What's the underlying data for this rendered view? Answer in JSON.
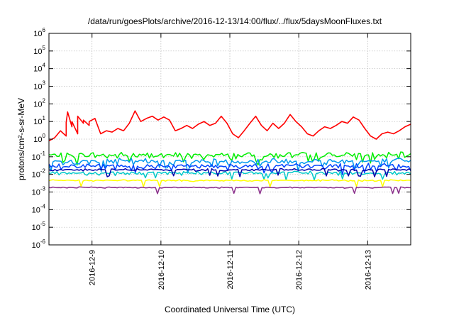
{
  "chart_data": {
    "type": "line",
    "title": "/data/run/goesPlots/archive/2016-12-13/14:00/flux/../flux/5daysMoonFluxes.txt",
    "xlabel": "Coordinated Universal Time (UTC)",
    "ylabel": "protons/cm²-s-sr-MeV",
    "y_scale": "log",
    "ylim": [
      1e-06,
      1000000.0
    ],
    "y_ticks": [
      {
        "label": "10",
        "exp": "-6",
        "value": 1e-06
      },
      {
        "label": "10",
        "exp": "-5",
        "value": 1e-05
      },
      {
        "label": "10",
        "exp": "-4",
        "value": 0.0001
      },
      {
        "label": "10",
        "exp": "-3",
        "value": 0.001
      },
      {
        "label": "10",
        "exp": "-2",
        "value": 0.01
      },
      {
        "label": "10",
        "exp": "-1",
        "value": 0.1
      },
      {
        "label": "10",
        "exp": "0",
        "value": 1
      },
      {
        "label": "10",
        "exp": "1",
        "value": 10
      },
      {
        "label": "10",
        "exp": "2",
        "value": 100
      },
      {
        "label": "10",
        "exp": "3",
        "value": 1000
      },
      {
        "label": "10",
        "exp": "4",
        "value": 10000
      },
      {
        "label": "10",
        "exp": "5",
        "value": 100000
      },
      {
        "label": "10",
        "exp": "6",
        "value": 1000000
      }
    ],
    "xlim": [
      "2016-12-08 09:00",
      "2016-12-13 15:00"
    ],
    "x_ticks": [
      "2016-12-9",
      "2016-12-10",
      "2016-12-11",
      "2016-12-12",
      "2016-12-13"
    ],
    "x_tick_times": [
      "2016-12-09 00:00",
      "2016-12-10 00:00",
      "2016-12-11 00:00",
      "2016-12-12 00:00",
      "2016-12-13 00:00"
    ],
    "grid": true,
    "series": [
      {
        "color": "#ff0000",
        "values": [
          {
            "t": "2016-12-08 09:00",
            "v": 0.8
          },
          {
            "t": "2016-12-08 11:00",
            "v": 1.2
          },
          {
            "t": "2016-12-08 13:00",
            "v": 3
          },
          {
            "t": "2016-12-08 15:00",
            "v": 1.5
          },
          {
            "t": "2016-12-08 17:00",
            "v": 5
          },
          {
            "t": "2016-12-08 19:00",
            "v": 2
          },
          {
            "t": "2016-12-08 21:00",
            "v": 8
          },
          {
            "t": "2016-12-08 23:00",
            "v": 6
          },
          {
            "t": "2016-12-09 01:00",
            "v": 15
          },
          {
            "t": "2016-12-08 13:30",
            "v": 2.5
          },
          {
            "t": "2016-12-08 15:00",
            "v": 9
          },
          {
            "t": "2016-12-08 15:30",
            "v": 35
          },
          {
            "t": "2016-12-08 17:00",
            "v": 10
          },
          {
            "t": "2016-12-08 19:00",
            "v": 20
          },
          {
            "t": "2016-12-08 21:00",
            "v": 12
          },
          {
            "t": "2016-12-08 23:00",
            "v": 10
          },
          {
            "t": "2016-12-09 01:00",
            "v": 15
          },
          {
            "t": "2016-12-09 03:00",
            "v": 2
          },
          {
            "t": "2016-12-09 05:00",
            "v": 3
          },
          {
            "t": "2016-12-09 07:00",
            "v": 2.5
          },
          {
            "t": "2016-12-09 09:00",
            "v": 4
          },
          {
            "t": "2016-12-09 11:00",
            "v": 3
          },
          {
            "t": "2016-12-09 13:00",
            "v": 8
          },
          {
            "t": "2016-12-09 15:00",
            "v": 40
          },
          {
            "t": "2016-12-09 17:00",
            "v": 10
          },
          {
            "t": "2016-12-09 19:00",
            "v": 15
          },
          {
            "t": "2016-12-09 21:00",
            "v": 20
          },
          {
            "t": "2016-12-09 23:00",
            "v": 12
          },
          {
            "t": "2016-12-10 01:00",
            "v": 18
          },
          {
            "t": "2016-12-10 03:00",
            "v": 12
          },
          {
            "t": "2016-12-10 05:00",
            "v": 3
          },
          {
            "t": "2016-12-10 07:00",
            "v": 4
          },
          {
            "t": "2016-12-10 09:00",
            "v": 6
          },
          {
            "t": "2016-12-10 11:00",
            "v": 4
          },
          {
            "t": "2016-12-10 13:00",
            "v": 7
          },
          {
            "t": "2016-12-10 15:00",
            "v": 10
          },
          {
            "t": "2016-12-10 17:00",
            "v": 6
          },
          {
            "t": "2016-12-10 19:00",
            "v": 8
          },
          {
            "t": "2016-12-10 21:00",
            "v": 20
          },
          {
            "t": "2016-12-10 23:00",
            "v": 8
          },
          {
            "t": "2016-12-11 01:00",
            "v": 2
          },
          {
            "t": "2016-12-11 03:00",
            "v": 1.2
          },
          {
            "t": "2016-12-11 05:00",
            "v": 3
          },
          {
            "t": "2016-12-11 07:00",
            "v": 8
          },
          {
            "t": "2016-12-11 09:00",
            "v": 20
          },
          {
            "t": "2016-12-11 11:00",
            "v": 6
          },
          {
            "t": "2016-12-11 13:00",
            "v": 3
          },
          {
            "t": "2016-12-11 15:00",
            "v": 8
          },
          {
            "t": "2016-12-11 17:00",
            "v": 4
          },
          {
            "t": "2016-12-11 19:00",
            "v": 8
          },
          {
            "t": "2016-12-11 21:00",
            "v": 25
          },
          {
            "t": "2016-12-11 23:00",
            "v": 10
          },
          {
            "t": "2016-12-12 01:00",
            "v": 5
          },
          {
            "t": "2016-12-12 03:00",
            "v": 2
          },
          {
            "t": "2016-12-12 05:00",
            "v": 1.5
          },
          {
            "t": "2016-12-12 07:00",
            "v": 3
          },
          {
            "t": "2016-12-12 09:00",
            "v": 5
          },
          {
            "t": "2016-12-12 11:00",
            "v": 4
          },
          {
            "t": "2016-12-12 13:00",
            "v": 6
          },
          {
            "t": "2016-12-12 15:00",
            "v": 10
          },
          {
            "t": "2016-12-12 17:00",
            "v": 8
          },
          {
            "t": "2016-12-12 19:00",
            "v": 18
          },
          {
            "t": "2016-12-12 21:00",
            "v": 12
          },
          {
            "t": "2016-12-12 23:00",
            "v": 4
          },
          {
            "t": "2016-12-13 01:00",
            "v": 1.5
          },
          {
            "t": "2016-12-13 03:00",
            "v": 1
          },
          {
            "t": "2016-12-13 05:00",
            "v": 2
          },
          {
            "t": "2016-12-13 07:00",
            "v": 2.5
          },
          {
            "t": "2016-12-13 09:00",
            "v": 2
          },
          {
            "t": "2016-12-13 11:00",
            "v": 3
          },
          {
            "t": "2016-12-13 13:00",
            "v": 5
          },
          {
            "t": "2016-12-13 15:00",
            "v": 7
          }
        ]
      },
      {
        "color": "#00ee00",
        "base": 0.12,
        "spread": 0.35
      },
      {
        "color": "#0099ee",
        "base": 0.055,
        "spread": 0.35
      },
      {
        "color": "#0044ff",
        "base": 0.03,
        "spread": 0.3
      },
      {
        "color": "#00c8c8",
        "base": 0.012,
        "spread": 0.2
      },
      {
        "color": "#0000aa",
        "base": 0.018,
        "spread": 0.12
      },
      {
        "color": "#ffff00",
        "base": 0.0045,
        "spread": 0.08
      },
      {
        "color": "#8b2f8b",
        "base": 0.0018,
        "spread": 0.06
      }
    ]
  }
}
